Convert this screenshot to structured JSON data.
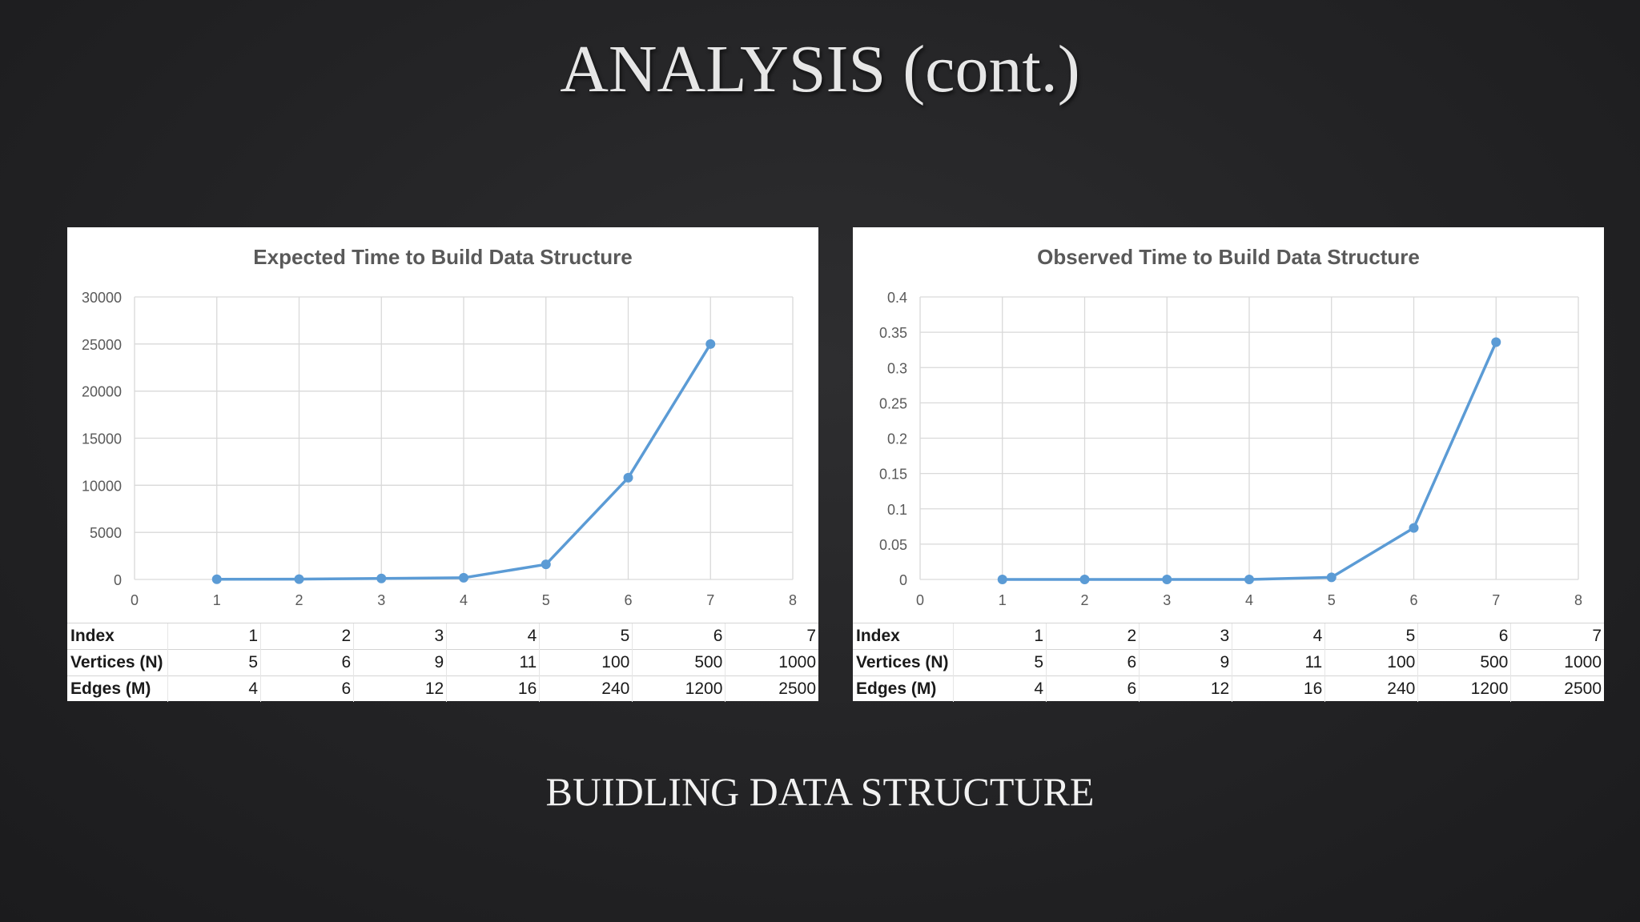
{
  "slide": {
    "title": "ANALYSIS (cont.)",
    "subtitle": "BUIDLING DATA STRUCTURE"
  },
  "colors": {
    "series": "#5b9bd5",
    "grid": "#d9d9d9",
    "background": "#232325"
  },
  "chart_data": [
    {
      "type": "line",
      "title": "Expected Time to Build Data Structure",
      "xlabel": "",
      "ylabel": "",
      "xlim": [
        0,
        8
      ],
      "ylim": [
        0,
        30000
      ],
      "x_ticks": [
        "0",
        "1",
        "2",
        "3",
        "4",
        "5",
        "6",
        "7",
        "8"
      ],
      "y_ticks": [
        "0",
        "5000",
        "10000",
        "15000",
        "20000",
        "25000",
        "30000"
      ],
      "grid": true,
      "series": [
        {
          "x": [
            1,
            2,
            3,
            4,
            5,
            6,
            7
          ],
          "y": [
            20,
            36,
            108,
            176,
            1600,
            10800,
            25000
          ]
        }
      ],
      "table": {
        "rows": [
          {
            "label": "Index",
            "values": [
              "1",
              "2",
              "3",
              "4",
              "5",
              "6",
              "7"
            ]
          },
          {
            "label": "Vertices (N)",
            "values": [
              "5",
              "6",
              "9",
              "11",
              "100",
              "500",
              "1000"
            ]
          },
          {
            "label": "Edges (M)",
            "values": [
              "4",
              "6",
              "12",
              "16",
              "240",
              "1200",
              "2500"
            ]
          }
        ]
      }
    },
    {
      "type": "line",
      "title": "Observed Time to Build Data Structure",
      "xlabel": "",
      "ylabel": "",
      "xlim": [
        0,
        8
      ],
      "ylim": [
        0,
        0.4
      ],
      "x_ticks": [
        "0",
        "1",
        "2",
        "3",
        "4",
        "5",
        "6",
        "7",
        "8"
      ],
      "y_ticks": [
        "0",
        "0.05",
        "0.1",
        "0.15",
        "0.2",
        "0.25",
        "0.3",
        "0.35",
        "0.4"
      ],
      "grid": true,
      "series": [
        {
          "x": [
            1,
            2,
            3,
            4,
            5,
            6,
            7
          ],
          "y": [
            0.0,
            0.0,
            0.0,
            0.0,
            0.003,
            0.073,
            0.336
          ]
        }
      ],
      "table": {
        "rows": [
          {
            "label": "Index",
            "values": [
              "1",
              "2",
              "3",
              "4",
              "5",
              "6",
              "7"
            ]
          },
          {
            "label": "Vertices (N)",
            "values": [
              "5",
              "6",
              "9",
              "11",
              "100",
              "500",
              "1000"
            ]
          },
          {
            "label": "Edges (M)",
            "values": [
              "4",
              "6",
              "12",
              "16",
              "240",
              "1200",
              "2500"
            ]
          }
        ]
      }
    }
  ]
}
